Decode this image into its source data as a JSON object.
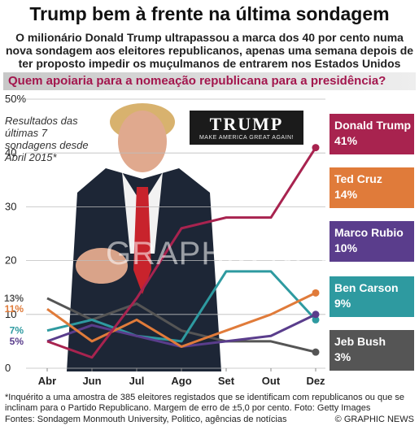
{
  "title": "Trump bem à frente na última sondagem",
  "subtitle": "O milionário Donald Trump ultrapassou a marca dos 40 por cento numa nova sondagem aos eleitores republicanos, apenas uma semana depois de ter proposto impedir os muçulmanos de entrarem nos Estados Unidos",
  "question": "Quem apoiaria para a nomeação republicana para a presidência?",
  "panel_label": "Resultados das últimas 7 sondagens desde Abril 2015*",
  "logo": {
    "name": "TRUMP",
    "slogan": "MAKE AMERICA GREAT AGAIN!"
  },
  "watermark": "GRAPHIC NEWS",
  "footnote": "*Inquérito a uma amostra de 385 eleitores registados que se identificam com republicanos ou que se inclinam para o Partido Republicano. Margem de erro de ±5,0 por cento. Foto: Getty Images",
  "sources": "Fontes: Sondagem Monmouth University, Politico, agências de notícias",
  "credit": "© GRAPHIC NEWS",
  "chart_data": {
    "type": "line",
    "categories": [
      "Abr",
      "Jun",
      "Jul",
      "Ago",
      "Set",
      "Out",
      "Dez"
    ],
    "yticks": [
      "0",
      "10",
      "20",
      "30",
      "40",
      "50%"
    ],
    "ylim": [
      0,
      50
    ],
    "grid": true,
    "series": [
      {
        "name": "Donald Trump",
        "label": "41%",
        "start_label": "",
        "color": "#a8234f",
        "values": [
          5,
          2,
          13,
          26,
          28,
          28,
          41
        ]
      },
      {
        "name": "Ted Cruz",
        "label": "14%",
        "start_label": "11%",
        "color": "#e07b3a",
        "values": [
          11,
          5,
          9,
          4,
          7,
          10,
          14
        ]
      },
      {
        "name": "Marco Rubio",
        "label": "10%",
        "start_label": "5%",
        "color": "#5a3d8c",
        "values": [
          5,
          8,
          6,
          4,
          5,
          6,
          10
        ]
      },
      {
        "name": "Ben Carson",
        "label": "9%",
        "start_label": "7%",
        "color": "#2e9aa0",
        "values": [
          7,
          9,
          6,
          5,
          18,
          18,
          9
        ]
      },
      {
        "name": "Jeb Bush",
        "label": "3%",
        "start_label": "13%",
        "color": "#555555",
        "values": [
          13,
          9,
          12,
          7,
          5,
          5,
          3
        ]
      }
    ]
  }
}
